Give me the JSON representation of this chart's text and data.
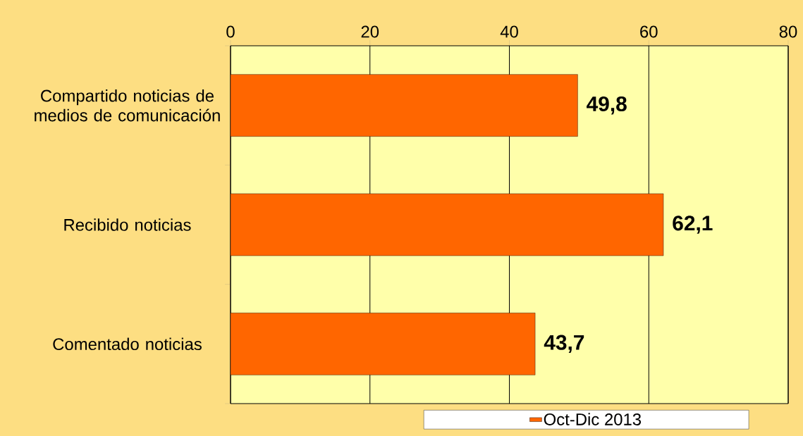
{
  "chart_data": {
    "type": "bar",
    "orientation": "horizontal",
    "categories": [
      "Compartido noticias de medios de comunicación",
      "Recibido noticias",
      "Comentado noticias"
    ],
    "series": [
      {
        "name": "Oct-Dic 2013",
        "color": "#ff6600",
        "values": [
          49.8,
          62.1,
          43.7
        ],
        "value_labels": [
          "49,8",
          "62,1",
          "43,7"
        ]
      }
    ],
    "xlim": [
      0,
      80
    ],
    "xticks": [
      0,
      20,
      40,
      60,
      80
    ],
    "grid": "x",
    "legend": "bottom right"
  }
}
